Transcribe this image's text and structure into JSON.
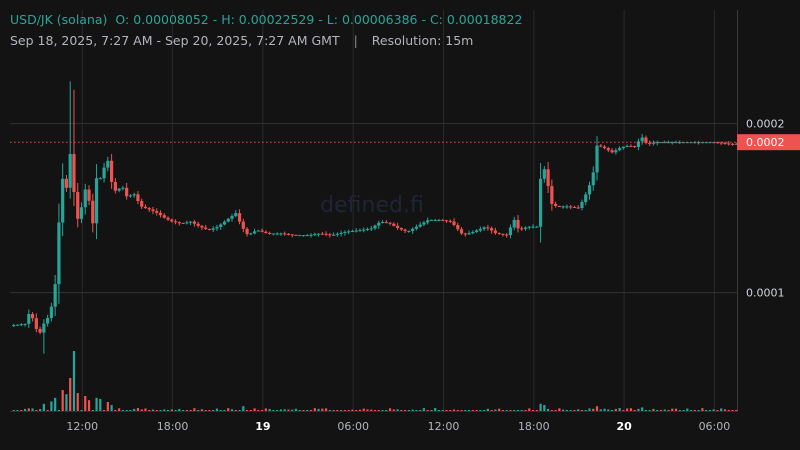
{
  "header": {
    "symbol": "USD/JK (solana)",
    "ohlc": "O: 0.00008052 - H: 0.00022529 - L: 0.00006386 - C: 0.00018822",
    "date_range": "Sep 18, 2025, 7:27 AM - Sep 20, 2025, 7:27 AM GMT",
    "separator": "|",
    "resolution": "Resolution: 15m"
  },
  "watermark": "defined.fi",
  "colors": {
    "background": "#131313",
    "up": "#26a69a",
    "down": "#ef5350",
    "grid": "#2a2a2a",
    "current_price_label": "#ef5350"
  },
  "chart_data": {
    "type": "candlestick",
    "ylim": [
      4e-05,
      0.00024
    ],
    "y_ticks": [
      {
        "value": 0.0001,
        "label": "0.0001"
      },
      {
        "value": 0.0002,
        "label": "0.0002"
      }
    ],
    "current_price": {
      "value": 0.000189,
      "label": "0.0002"
    },
    "x_ticks": [
      {
        "hour": 12,
        "label": "12:00",
        "bold": false
      },
      {
        "hour": 18,
        "label": "18:00",
        "bold": false
      },
      {
        "hour": 24,
        "label": "19",
        "bold": true
      },
      {
        "hour": 30,
        "label": "06:00",
        "bold": false
      },
      {
        "hour": 36,
        "label": "12:00",
        "bold": false
      },
      {
        "hour": 42,
        "label": "18:00",
        "bold": false
      },
      {
        "hour": 48,
        "label": "20",
        "bold": true
      },
      {
        "hour": 54,
        "label": "06:00",
        "bold": false
      }
    ],
    "x_range_hours": [
      7.2,
      55.5
    ],
    "anchors": [
      [
        7.2,
        8.05e-05
      ],
      [
        8.2,
        8.15e-05
      ],
      [
        8.5,
        8.85e-05
      ],
      [
        8.8,
        8.3e-05
      ],
      [
        9.1,
        7.4e-05
      ],
      [
        9.4,
        8.1e-05
      ],
      [
        9.7,
        8.5e-05
      ],
      [
        10.0,
        9.3e-05
      ],
      [
        10.3,
        0.000111
      ],
      [
        10.6,
        0.000172
      ],
      [
        10.9,
        0.000158
      ],
      [
        11.2,
        0.000182
      ],
      [
        11.5,
        0.000155
      ],
      [
        11.8,
        0.000138
      ],
      [
        12.1,
        0.000163
      ],
      [
        12.4,
        0.000157
      ],
      [
        12.7,
        0.000141
      ],
      [
        13.0,
        0.000173
      ],
      [
        13.3,
        0.000165
      ],
      [
        13.6,
        0.000183
      ],
      [
        14.0,
        0.000163
      ],
      [
        14.3,
        0.000159
      ],
      [
        14.6,
        0.000164
      ],
      [
        15.0,
        0.000156
      ],
      [
        15.4,
        0.000159
      ],
      [
        15.9,
        0.000151
      ],
      [
        16.5,
        0.000149
      ],
      [
        17.0,
        0.000147
      ],
      [
        17.5,
        0.000144
      ],
      [
        18.0,
        0.000142
      ],
      [
        18.6,
        0.000141
      ],
      [
        19.2,
        0.000142
      ],
      [
        19.8,
        0.000139
      ],
      [
        20.4,
        0.000137
      ],
      [
        21.0,
        0.000139
      ],
      [
        21.6,
        0.000143
      ],
      [
        22.2,
        0.000147
      ],
      [
        22.6,
        0.000139
      ],
      [
        23.0,
        0.000134
      ],
      [
        23.6,
        0.000137
      ],
      [
        24.3,
        0.000135
      ],
      [
        25.2,
        0.000135
      ],
      [
        26.1,
        0.000134
      ],
      [
        27.0,
        0.000134
      ],
      [
        27.8,
        0.000135
      ],
      [
        28.6,
        0.000134
      ],
      [
        29.5,
        0.000136
      ],
      [
        30.5,
        0.000137
      ],
      [
        31.2,
        0.000138
      ],
      [
        31.8,
        0.000142
      ],
      [
        32.4,
        0.000141
      ],
      [
        33.0,
        0.000138
      ],
      [
        33.6,
        0.000136
      ],
      [
        34.2,
        0.000139
      ],
      [
        35.0,
        0.000143
      ],
      [
        35.8,
        0.000143
      ],
      [
        36.5,
        0.000142
      ],
      [
        37.3,
        0.000134
      ],
      [
        38.0,
        0.000136
      ],
      [
        38.8,
        0.000139
      ],
      [
        39.5,
        0.000135
      ],
      [
        40.2,
        0.000134
      ],
      [
        40.7,
        0.000143
      ],
      [
        41.0,
        0.000137
      ],
      [
        41.6,
        0.000139
      ],
      [
        42.2,
        0.000139
      ],
      [
        42.5,
        0.000173
      ],
      [
        42.8,
        0.000173
      ],
      [
        43.1,
        0.000153
      ],
      [
        43.5,
        0.000151
      ],
      [
        44.2,
        0.000151
      ],
      [
        45.0,
        0.00015
      ],
      [
        45.5,
        0.000159
      ],
      [
        45.9,
        0.000168
      ],
      [
        46.2,
        0.000187
      ],
      [
        46.6,
        0.000186
      ],
      [
        47.2,
        0.000183
      ],
      [
        47.8,
        0.000186
      ],
      [
        48.3,
        0.000187
      ],
      [
        48.8,
        0.000186
      ],
      [
        49.1,
        0.000193
      ],
      [
        49.5,
        0.000188
      ],
      [
        50.2,
        0.000189
      ],
      [
        51.0,
        0.000189
      ],
      [
        52.0,
        0.000189
      ],
      [
        53.0,
        0.000189
      ],
      [
        54.0,
        0.000189
      ],
      [
        55.0,
        0.000188
      ],
      [
        55.5,
        0.000188
      ]
    ],
    "spikes": [
      {
        "hour": 11.2,
        "high": 0.000225
      },
      {
        "hour": 11.5,
        "high": 0.00022
      },
      {
        "hour": 9.4,
        "low": 6.39e-05
      }
    ],
    "volume_spikes": [
      [
        9.4,
        0.12
      ],
      [
        10.0,
        0.16
      ],
      [
        10.3,
        0.22
      ],
      [
        10.6,
        0.35
      ],
      [
        10.9,
        0.28
      ],
      [
        11.2,
        0.55
      ],
      [
        11.5,
        1.0
      ],
      [
        11.8,
        0.3
      ],
      [
        12.1,
        0.25
      ],
      [
        12.4,
        0.18
      ],
      [
        13.0,
        0.22
      ],
      [
        13.3,
        0.2
      ],
      [
        13.6,
        0.15
      ],
      [
        14.0,
        0.1
      ],
      [
        22.6,
        0.08
      ],
      [
        42.5,
        0.12
      ],
      [
        42.8,
        0.1
      ],
      [
        46.2,
        0.08
      ],
      [
        49.1,
        0.06
      ]
    ]
  }
}
